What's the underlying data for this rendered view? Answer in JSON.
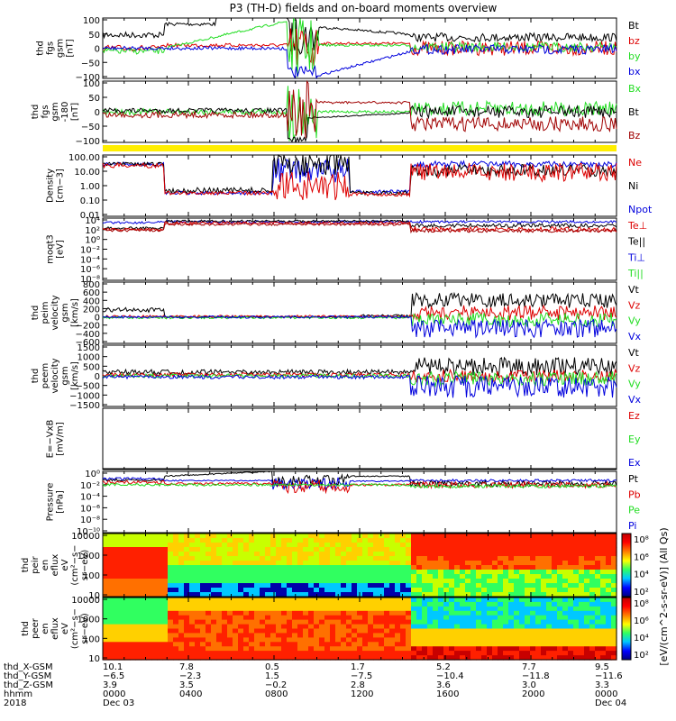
{
  "title": "P3 (TH-D) fields and on-board moments overview",
  "colors": {
    "black": "#000000",
    "red": "#dd0000",
    "dkred": "#a00000",
    "green": "#22dd22",
    "blue": "#0000dd",
    "yellow": "#ffee00",
    "gray": "#888888"
  },
  "chart_data": [
    {
      "type": "line",
      "name": "fgs-gsm",
      "ylabel": [
        "thd",
        "fgs",
        "gsm",
        "[nT]"
      ],
      "yticks": [
        "100",
        "50",
        "0",
        "−50",
        "−100"
      ],
      "ylim": [
        -100,
        100
      ],
      "legend": [
        {
          "label": "Bt",
          "color": "black"
        },
        {
          "label": "bz",
          "color": "red"
        },
        {
          "label": "by",
          "color": "green"
        },
        {
          "label": "bx",
          "color": "blue"
        }
      ]
    },
    {
      "type": "line",
      "name": "fgs-gse",
      "ylabel": [
        "thd",
        "fgs",
        "gsm",
        "-180",
        "[nT]"
      ],
      "yticks": [
        "100",
        "50",
        "0",
        "−50",
        "−100"
      ],
      "ylim": [
        -100,
        100
      ],
      "legend": [
        {
          "label": "Bx",
          "color": "green"
        },
        {
          "label": "Bt",
          "color": "black"
        },
        {
          "label": "Bz",
          "color": "dkred"
        }
      ]
    },
    {
      "type": "line",
      "name": "density",
      "ylabel": [
        "Density",
        "[cm−3]"
      ],
      "yticks": [
        "100.00",
        "10.00",
        "1.00",
        "0.10",
        "0.01"
      ],
      "ylim": [
        0.01,
        100
      ],
      "legend": [
        {
          "label": "Ne",
          "color": "red"
        },
        {
          "label": "Ni",
          "color": "black"
        },
        {
          "label": "Npot",
          "color": "blue"
        }
      ]
    },
    {
      "type": "line",
      "name": "temperature",
      "ylabel": [
        "moqt3",
        "[eV]"
      ],
      "yticks": [
        "10⁴",
        "10²",
        "10⁰",
        "10⁻²",
        "10⁻⁴",
        "10⁻⁶",
        "10⁻⁸"
      ],
      "ylim": [
        -8,
        4
      ],
      "legend": [
        {
          "label": "Te⊥",
          "color": "red"
        },
        {
          "label": "Te||",
          "color": "black"
        },
        {
          "label": "Ti⊥",
          "color": "blue"
        },
        {
          "label": "Ti||",
          "color": "green"
        }
      ]
    },
    {
      "type": "line",
      "name": "peim-velocity",
      "ylabel": [
        "thd",
        "peim",
        "velocity",
        "gsm",
        "[km/s]"
      ],
      "yticks": [
        "800",
        "600",
        "400",
        "200",
        "0",
        "−200",
        "−400",
        "−600"
      ],
      "ylim": [
        -600,
        800
      ],
      "legend": [
        {
          "label": "Vt",
          "color": "black"
        },
        {
          "label": "Vz",
          "color": "red"
        },
        {
          "label": "Vy",
          "color": "green"
        },
        {
          "label": "Vx",
          "color": "blue"
        }
      ]
    },
    {
      "type": "line",
      "name": "peem-velocity",
      "ylabel": [
        "thd",
        "peem",
        "velocity",
        "gsm",
        "[km/s]"
      ],
      "yticks": [
        "1500",
        "1000",
        "500",
        "0",
        "−500",
        "−1000",
        "−1500"
      ],
      "ylim": [
        -1500,
        1500
      ],
      "legend": [
        {
          "label": "Vt",
          "color": "black"
        },
        {
          "label": "Vz",
          "color": "red"
        },
        {
          "label": "Vy",
          "color": "green"
        },
        {
          "label": "Vx",
          "color": "blue"
        }
      ]
    },
    {
      "type": "line",
      "name": "efield",
      "ylabel": [
        "E=−VxB",
        "[mV/m]"
      ],
      "yticks": [],
      "ylim": [
        0,
        1
      ],
      "legend": [
        {
          "label": "Ez",
          "color": "red"
        },
        {
          "label": "Ey",
          "color": "green"
        },
        {
          "label": "Ex",
          "color": "blue"
        }
      ]
    },
    {
      "type": "line",
      "name": "pressure",
      "ylabel": [
        "Pressure",
        "[nPa]"
      ],
      "yticks": [
        "10⁰",
        "10⁻²",
        "10⁻⁴",
        "10⁻⁶",
        "10⁻⁸",
        "10⁻¹⁰"
      ],
      "ylim": [
        -10,
        0
      ],
      "legend": [
        {
          "label": "Pt",
          "color": "black"
        },
        {
          "label": "Pb",
          "color": "red"
        },
        {
          "label": "Pe",
          "color": "green"
        },
        {
          "label": "Pi",
          "color": "blue"
        }
      ]
    },
    {
      "type": "heatmap",
      "name": "peir-eflux",
      "ylabel": [
        "thd",
        "peir",
        "en",
        "eflux",
        "eV",
        "(cm²−s−",
        "sr−eV)"
      ],
      "yticks": [
        "10000",
        "1000",
        "100",
        "10"
      ],
      "ylim": [
        5,
        25000
      ]
    },
    {
      "type": "heatmap",
      "name": "peer-eflux",
      "ylabel": [
        "thd",
        "peer",
        "en",
        "eflux",
        "eV",
        "(cm²−s−",
        "sr−eV)"
      ],
      "yticks": [
        "10000",
        "1000",
        "100",
        "10"
      ],
      "ylim": [
        5,
        25000
      ]
    }
  ],
  "colorbar": {
    "label": "[eV/(cm^2-s-sr-eV)] (All Qs)",
    "ticks": [
      "10⁸",
      "10⁶",
      "10⁴",
      "10²"
    ],
    "ticks2": [
      "10⁸",
      "10⁶",
      "10⁴",
      "10²"
    ]
  },
  "xaxis": {
    "row_labels": [
      "thd_X-GSM",
      "thd_Y-GSM",
      "thd_Z-GSM",
      "hhmm",
      "2018"
    ],
    "columns": [
      {
        "x": "10.1",
        "y": "−6.5",
        "z": "3.9",
        "hhmm": "0000",
        "date": "Dec 03"
      },
      {
        "x": "7.8",
        "y": "−2.3",
        "z": "3.5",
        "hhmm": "0400",
        "date": ""
      },
      {
        "x": "0.5",
        "y": "1.5",
        "z": "−0.2",
        "hhmm": "0800",
        "date": ""
      },
      {
        "x": "1.7",
        "y": "−7.5",
        "z": "2.8",
        "hhmm": "1200",
        "date": ""
      },
      {
        "x": "5.2",
        "y": "−10.4",
        "z": "3.6",
        "hhmm": "1600",
        "date": ""
      },
      {
        "x": "7.7",
        "y": "−11.8",
        "z": "3.0",
        "hhmm": "2000",
        "date": ""
      },
      {
        "x": "9.5",
        "y": "−11.6",
        "z": "3.3",
        "hhmm": "0000",
        "date": "Dec 04"
      }
    ]
  }
}
